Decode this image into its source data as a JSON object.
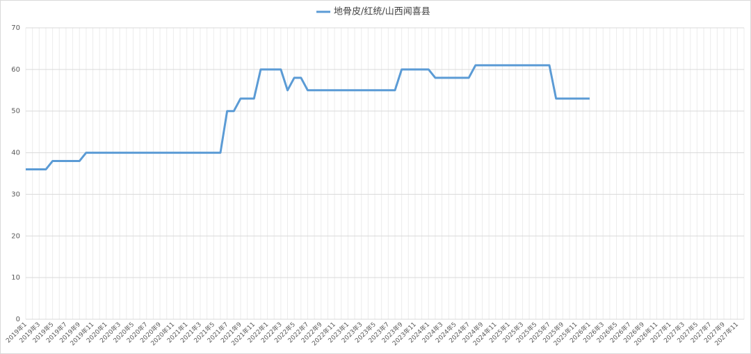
{
  "chart_data": {
    "type": "line",
    "categories": [
      "2019年1",
      null,
      "2019年3",
      null,
      "2019年5",
      null,
      "2019年7",
      null,
      "2019年9",
      null,
      "2019年11",
      null,
      "2020年1",
      null,
      "2020年3",
      null,
      "2020年5",
      null,
      "2020年7",
      null,
      "2020年9",
      null,
      "2020年11",
      null,
      "2021年1",
      null,
      "2021年3",
      null,
      "2021年5",
      null,
      "2021年7",
      null,
      "2021年9",
      null,
      "2021年11",
      null,
      "2022年1",
      null,
      "2022年3",
      null,
      "2022年5",
      null,
      "2022年7",
      null,
      "2022年9",
      null,
      "2022年11",
      null,
      "2023年1",
      null,
      "2023年3",
      null,
      "2023年5",
      null,
      "2023年7",
      null,
      "2023年9",
      null,
      "2023年11",
      null,
      "2024年1",
      null,
      "2024年3",
      null,
      "2024年5",
      null,
      "2024年7",
      null,
      "2024年9",
      null,
      "2024年11",
      null,
      "2025年1",
      null,
      "2025年3",
      null,
      "2025年5",
      null,
      "2025年7",
      null,
      "2025年9",
      null,
      "2025年11",
      null,
      "2026年1",
      null,
      "2026年3",
      null,
      "2026年5",
      null,
      "2026年7",
      null,
      "2026年9",
      null,
      "2026年11",
      null,
      "2027年1",
      null,
      "2027年3",
      null,
      "2027年5",
      null,
      "2027年7",
      null,
      "2027年9",
      null,
      "2027年11",
      null
    ],
    "series": [
      {
        "name": "地骨皮/红统/山西闻喜县",
        "color": "#5b9bd5",
        "values": [
          36,
          36,
          36,
          36,
          38,
          38,
          38,
          38,
          38,
          40,
          40,
          40,
          40,
          40,
          40,
          40,
          40,
          40,
          40,
          40,
          40,
          40,
          40,
          40,
          40,
          40,
          40,
          40,
          40,
          40,
          50,
          50,
          53,
          53,
          53,
          60,
          60,
          60,
          60,
          55,
          58,
          58,
          55,
          55,
          55,
          55,
          55,
          55,
          55,
          55,
          55,
          55,
          55,
          55,
          55,
          55,
          60,
          60,
          60,
          60,
          60,
          58,
          58,
          58,
          58,
          58,
          58,
          61,
          61,
          61,
          61,
          61,
          61,
          61,
          61,
          61,
          61,
          61,
          61,
          53,
          53,
          53,
          53,
          53,
          53,
          null,
          null,
          null,
          null,
          null,
          null,
          null,
          null,
          null,
          null,
          null,
          null,
          null,
          null,
          null,
          null,
          null,
          null,
          null,
          null,
          null,
          null,
          null
        ]
      }
    ],
    "ylim": [
      0,
      70
    ],
    "yticks": [
      0,
      10,
      20,
      30,
      40,
      50,
      60,
      70
    ],
    "grid": true,
    "legend": "top"
  }
}
